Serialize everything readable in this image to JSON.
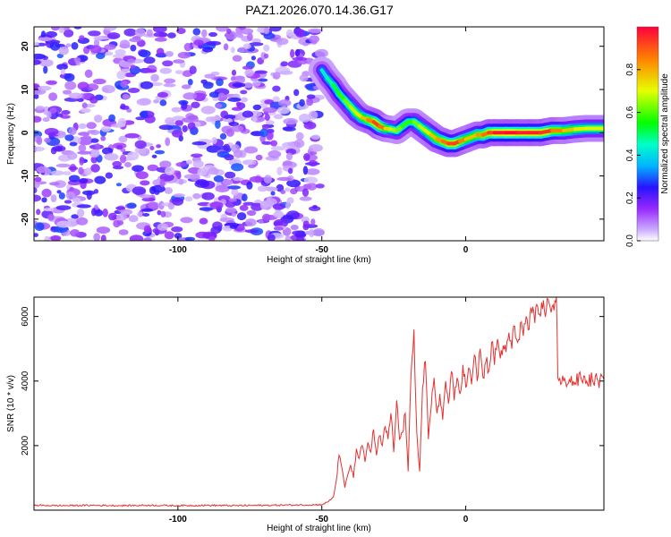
{
  "title": "PAZ1.2026.070.14.36.G17",
  "chart_data": [
    {
      "type": "heatmap",
      "name": "spectrogram",
      "xlabel": "Height of straight line (km)",
      "ylabel": "Frequency (Hz)",
      "xlim": [
        -150,
        48
      ],
      "ylim": [
        -25,
        24.5
      ],
      "x_ticks": [
        -100,
        -50,
        0
      ],
      "y_ticks": [
        -20,
        -10,
        0,
        10,
        20
      ],
      "noise_region": {
        "x_min": -150,
        "x_max": -50,
        "y_min": -25,
        "y_max": 24.5,
        "amplitude_max": 0.25
      },
      "signal_ridge": {
        "x": [
          -50,
          -48,
          -46,
          -44,
          -42,
          -40,
          -38,
          -36,
          -34,
          -32,
          -30,
          -28,
          -26,
          -24,
          -22,
          -20,
          -18,
          -16,
          -14,
          -12,
          -10,
          -8,
          -6,
          -4,
          -2,
          0,
          2,
          4,
          6,
          8,
          10,
          14,
          18,
          22,
          26,
          30,
          34,
          38,
          42,
          46,
          48
        ],
        "y": [
          14.5,
          12.5,
          11.0,
          9.0,
          7.5,
          6.0,
          4.5,
          3.5,
          3.0,
          2.5,
          1.5,
          1.0,
          0.8,
          0.5,
          1.5,
          2.5,
          2.5,
          1.5,
          0.5,
          -0.5,
          -1.5,
          -2.0,
          -2.5,
          -2.5,
          -2.0,
          -1.5,
          -1.0,
          -0.5,
          -0.5,
          0.0,
          0.0,
          0.0,
          0.0,
          0.0,
          0.0,
          0.5,
          0.5,
          0.8,
          1.0,
          1.0,
          1.0
        ],
        "amplitude": [
          0.4,
          0.45,
          0.5,
          0.55,
          0.6,
          0.65,
          0.7,
          0.75,
          0.8,
          0.9,
          0.95,
          0.8,
          0.7,
          0.65,
          0.6,
          0.55,
          0.6,
          0.65,
          0.7,
          0.75,
          0.8,
          0.85,
          0.9,
          0.95,
          0.9,
          0.8,
          0.75,
          0.8,
          0.85,
          0.9,
          0.95,
          1.0,
          0.98,
          0.95,
          0.98,
          0.9,
          0.8,
          0.75,
          0.7,
          0.7,
          0.7
        ]
      },
      "colorbar": {
        "label": "Normalized spectral amplitude",
        "range": [
          0.0,
          1.0
        ],
        "ticks": [
          0.0,
          0.2,
          0.4,
          0.6,
          0.8
        ],
        "tick_labels": [
          "0.0",
          "0.2",
          "0.4",
          "0.6",
          "0.8"
        ]
      }
    },
    {
      "type": "line",
      "name": "snr",
      "xlabel": "Height of straight line (km)",
      "ylabel": "SNR (10 * v/v)",
      "xlim": [
        -150,
        48
      ],
      "ylim": [
        0,
        6600
      ],
      "x_ticks": [
        -100,
        -50,
        0
      ],
      "y_ticks": [
        2000,
        4000,
        6000
      ],
      "color": "#e53030",
      "series": [
        {
          "name": "SNR",
          "x": [
            -150,
            -140,
            -130,
            -120,
            -110,
            -100,
            -90,
            -80,
            -70,
            -60,
            -50,
            -48,
            -46,
            -45,
            -44,
            -43,
            -42,
            -41,
            -40,
            -39,
            -38,
            -37,
            -36,
            -35,
            -34,
            -33,
            -32,
            -31,
            -30,
            -29,
            -28,
            -27,
            -26,
            -25,
            -24,
            -23,
            -22,
            -21,
            -20,
            -19,
            -18,
            -17,
            -16,
            -15,
            -14,
            -13,
            -12,
            -11,
            -10,
            -9,
            -8,
            -7,
            -6,
            -5,
            -4,
            -3,
            -2,
            -1,
            0,
            1,
            2,
            3,
            4,
            5,
            6,
            7,
            8,
            9,
            10,
            11,
            12,
            13,
            14,
            15,
            16,
            17,
            18,
            19,
            20,
            21,
            22,
            23,
            24,
            25,
            26,
            27,
            28,
            29,
            30,
            31,
            31.5,
            32,
            33,
            34,
            36,
            38,
            40,
            42,
            44,
            46,
            48
          ],
          "values": [
            150,
            140,
            150,
            140,
            150,
            140,
            150,
            140,
            150,
            160,
            170,
            250,
            400,
            900,
            1700,
            1300,
            700,
            1100,
            1400,
            1000,
            1900,
            1600,
            2000,
            1500,
            2100,
            1800,
            2500,
            1700,
            2300,
            2000,
            2600,
            2200,
            3000,
            1800,
            3400,
            2200,
            2400,
            3000,
            1200,
            4200,
            5600,
            2400,
            1200,
            3800,
            4600,
            2200,
            3200,
            4100,
            3000,
            3600,
            2800,
            4000,
            3300,
            4300,
            3400,
            4100,
            3600,
            4500,
            3800,
            4400,
            3900,
            4800,
            4000,
            5000,
            4100,
            4600,
            4300,
            5200,
            4500,
            5300,
            4700,
            5100,
            4900,
            5500,
            5000,
            5700,
            5200,
            5800,
            5400,
            6000,
            5600,
            6100,
            5800,
            6300,
            6000,
            6500,
            6200,
            6400,
            6300,
            6500,
            6600,
            4100,
            3900,
            4000,
            4050,
            3950,
            4100,
            4000,
            4050,
            4000,
            4050
          ]
        }
      ]
    }
  ]
}
